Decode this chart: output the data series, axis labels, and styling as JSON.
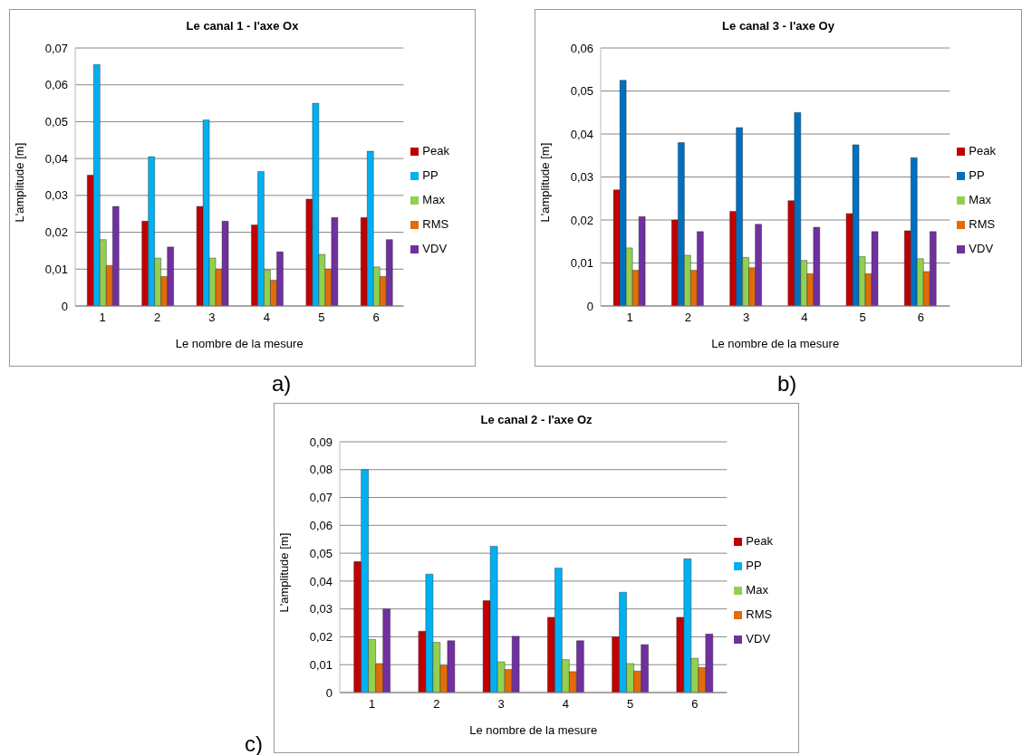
{
  "chart_data": [
    {
      "type": "bar",
      "title": "Le canal 1 - l'axe Ox",
      "xlabel": "Le nombre de la mesure",
      "ylabel": "L'amplitude [m]",
      "annotations": [
        "a)"
      ],
      "categories": [
        "1",
        "2",
        "3",
        "4",
        "5",
        "6"
      ],
      "series": [
        {
          "name": "Peak",
          "color": "#c00000",
          "values": [
            0.0355,
            0.023,
            0.027,
            0.022,
            0.029,
            0.024
          ]
        },
        {
          "name": "PP",
          "color": "#00b0f0",
          "values": [
            0.0655,
            0.0405,
            0.0505,
            0.0365,
            0.055,
            0.042
          ]
        },
        {
          "name": "Max",
          "color": "#92d050",
          "values": [
            0.018,
            0.013,
            0.013,
            0.0098,
            0.014,
            0.0106
          ]
        },
        {
          "name": "RMS",
          "color": "#e36c09",
          "values": [
            0.011,
            0.008,
            0.01,
            0.007,
            0.01,
            0.008
          ]
        },
        {
          "name": "VDV",
          "color": "#7030a0",
          "values": [
            0.027,
            0.016,
            0.023,
            0.0147,
            0.024,
            0.018
          ]
        }
      ],
      "ylim": [
        0,
        0.07
      ],
      "yticks": [
        {
          "value": 0,
          "label": "0"
        },
        {
          "value": 0.01,
          "label": "0,01"
        },
        {
          "value": 0.02,
          "label": "0,02"
        },
        {
          "value": 0.03,
          "label": "0,03"
        },
        {
          "value": 0.04,
          "label": "0,04"
        },
        {
          "value": 0.05,
          "label": "0,05"
        },
        {
          "value": 0.06,
          "label": "0,06"
        },
        {
          "value": 0.07,
          "label": "0,07"
        }
      ],
      "grid": "y",
      "legend": "right"
    },
    {
      "type": "bar",
      "title": "Le canal 3 - l'axe Oy",
      "xlabel": "Le nombre de la mesure",
      "ylabel": "L'amplitude [m]",
      "annotations": [
        "b)"
      ],
      "categories": [
        "1",
        "2",
        "3",
        "4",
        "5",
        "6"
      ],
      "series": [
        {
          "name": "Peak",
          "color": "#c00000",
          "values": [
            0.027,
            0.02,
            0.022,
            0.0245,
            0.0215,
            0.0175
          ]
        },
        {
          "name": "PP",
          "color": "#0070c0",
          "values": [
            0.0525,
            0.038,
            0.0415,
            0.045,
            0.0375,
            0.0345
          ]
        },
        {
          "name": "Max",
          "color": "#92d050",
          "values": [
            0.0135,
            0.0118,
            0.0113,
            0.0106,
            0.0115,
            0.011
          ]
        },
        {
          "name": "RMS",
          "color": "#e36c09",
          "values": [
            0.0083,
            0.0083,
            0.0089,
            0.0075,
            0.0075,
            0.008
          ]
        },
        {
          "name": "VDV",
          "color": "#7030a0",
          "values": [
            0.0208,
            0.0173,
            0.019,
            0.0183,
            0.0173,
            0.0173
          ]
        }
      ],
      "ylim": [
        0,
        0.06
      ],
      "yticks": [
        {
          "value": 0,
          "label": "0"
        },
        {
          "value": 0.01,
          "label": "0,01"
        },
        {
          "value": 0.02,
          "label": "0,02"
        },
        {
          "value": 0.03,
          "label": "0,03"
        },
        {
          "value": 0.04,
          "label": "0,04"
        },
        {
          "value": 0.05,
          "label": "0,05"
        },
        {
          "value": 0.06,
          "label": "0,06"
        }
      ],
      "grid": "y",
      "legend": "right"
    },
    {
      "type": "bar",
      "title": "Le canal 2 - l'axe Oz",
      "xlabel": "Le nombre de la mesure",
      "ylabel": "L'amplitude [m]",
      "annotations": [
        "c)"
      ],
      "categories": [
        "1",
        "2",
        "3",
        "4",
        "5",
        "6"
      ],
      "series": [
        {
          "name": "Peak",
          "color": "#c00000",
          "values": [
            0.047,
            0.022,
            0.033,
            0.027,
            0.02,
            0.027
          ]
        },
        {
          "name": "PP",
          "color": "#00b0f0",
          "values": [
            0.08,
            0.0425,
            0.0525,
            0.0447,
            0.036,
            0.048
          ]
        },
        {
          "name": "Max",
          "color": "#92d050",
          "values": [
            0.019,
            0.018,
            0.011,
            0.0118,
            0.0104,
            0.0123
          ]
        },
        {
          "name": "RMS",
          "color": "#e36c09",
          "values": [
            0.0104,
            0.0097,
            0.0083,
            0.0075,
            0.0077,
            0.009
          ]
        },
        {
          "name": "VDV",
          "color": "#7030a0",
          "values": [
            0.03,
            0.0186,
            0.0202,
            0.0186,
            0.0172,
            0.021
          ]
        }
      ],
      "ylim": [
        0,
        0.09
      ],
      "yticks": [
        {
          "value": 0,
          "label": "0"
        },
        {
          "value": 0.01,
          "label": "0,01"
        },
        {
          "value": 0.02,
          "label": "0,02"
        },
        {
          "value": 0.03,
          "label": "0,03"
        },
        {
          "value": 0.04,
          "label": "0,04"
        },
        {
          "value": 0.05,
          "label": "0,05"
        },
        {
          "value": 0.06,
          "label": "0,06"
        },
        {
          "value": 0.07,
          "label": "0,07"
        },
        {
          "value": 0.08,
          "label": "0,08"
        },
        {
          "value": 0.09,
          "label": "0,09"
        }
      ],
      "grid": "y",
      "legend": "right"
    }
  ]
}
